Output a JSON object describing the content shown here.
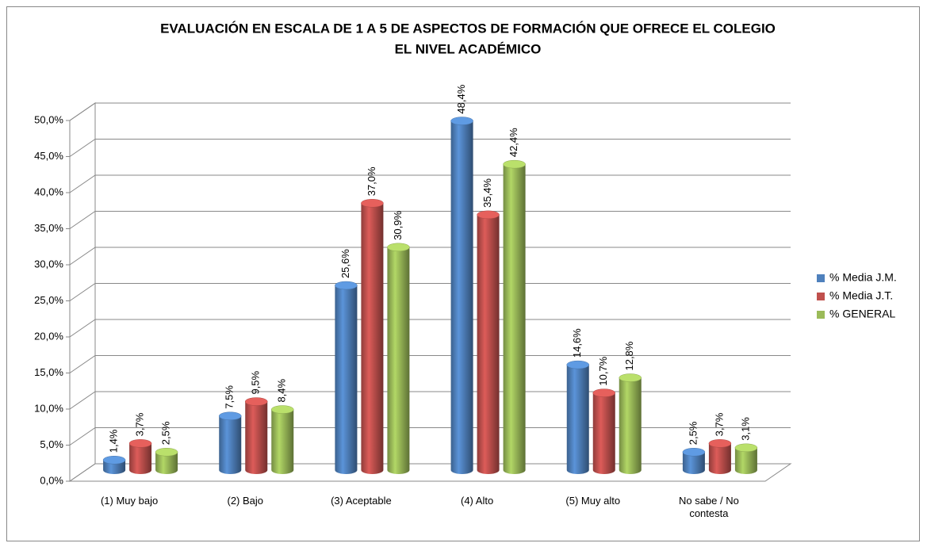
{
  "chart_data": {
    "type": "bar",
    "title": "EVALUACIÓN EN ESCALA DE  1 A 5 DE ASPECTOS DE FORMACIÓN  QUE OFRECE EL COLEGIO",
    "subtitle": "EL NIVEL ACADÉMICO",
    "categories": [
      "(1) Muy bajo",
      "(2) Bajo",
      "(3) Aceptable",
      "(4) Alto",
      "(5) Muy alto",
      "No sabe / No contesta"
    ],
    "series": [
      {
        "name": "% Media J.M.",
        "color": "#4f81bd",
        "values": [
          1.4,
          7.5,
          25.6,
          48.4,
          14.6,
          2.5
        ],
        "value_labels": [
          "1,4%",
          "7,5%",
          "25,6%",
          "48,4%",
          "14,6%",
          "2,5%"
        ]
      },
      {
        "name": "% Media J.T.",
        "color": "#c0504d",
        "values": [
          3.7,
          9.5,
          37.0,
          35.4,
          10.7,
          3.7
        ],
        "value_labels": [
          "3,7%",
          "9,5%",
          "37,0%",
          "35,4%",
          "10,7%",
          "3,7%"
        ]
      },
      {
        "name": "% GENERAL",
        "color": "#9bbb59",
        "values": [
          2.5,
          8.4,
          30.9,
          42.4,
          12.8,
          3.1
        ],
        "value_labels": [
          "2,5%",
          "8,4%",
          "30,9%",
          "42,4%",
          "12,8%",
          "3,1%"
        ]
      }
    ],
    "ylim": [
      0,
      50
    ],
    "yticks": [
      {
        "value": 0,
        "label": "0,0%"
      },
      {
        "value": 5,
        "label": "5,0%"
      },
      {
        "value": 10,
        "label": "10,0%"
      },
      {
        "value": 15,
        "label": "15,0%"
      },
      {
        "value": 20,
        "label": "20,0%"
      },
      {
        "value": 25,
        "label": "25,0%"
      },
      {
        "value": 30,
        "label": "30,0%"
      },
      {
        "value": 35,
        "label": "35,0%"
      },
      {
        "value": 40,
        "label": "40,0%"
      },
      {
        "value": 45,
        "label": "45,0%"
      },
      {
        "value": 50,
        "label": "50,0%"
      }
    ],
    "grid": true,
    "legend": "right"
  }
}
